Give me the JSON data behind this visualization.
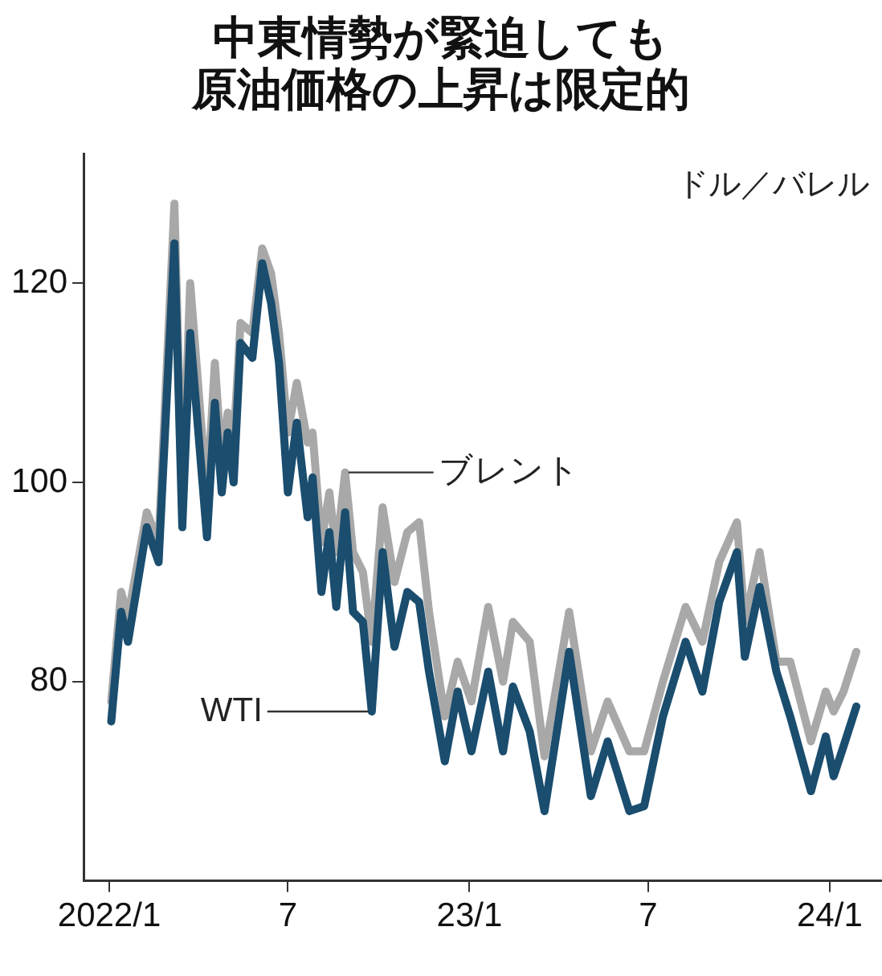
{
  "chart_data": {
    "type": "line",
    "title": "中東情勢が緊迫しても",
    "subtitle": "原油価格の上昇は限定的",
    "ylabel": "ドル／バレル",
    "x": [
      "2022-01-03",
      "2022-01-13",
      "2022-01-20",
      "2022-02-08",
      "2022-02-20",
      "2022-03-08",
      "2022-03-16",
      "2022-03-24",
      "2022-04-10",
      "2022-04-18",
      "2022-04-25",
      "2022-05-01",
      "2022-05-07",
      "2022-05-14",
      "2022-05-26",
      "2022-06-05",
      "2022-06-14",
      "2022-06-22",
      "2022-07-01",
      "2022-07-10",
      "2022-07-21",
      "2022-07-26",
      "2022-08-04",
      "2022-08-12",
      "2022-08-19",
      "2022-08-28",
      "2022-09-05",
      "2022-09-15",
      "2022-09-24",
      "2022-10-05",
      "2022-10-17",
      "2022-10-30",
      "2022-11-11",
      "2022-11-21",
      "2022-12-07",
      "2022-12-20",
      "2023-01-03",
      "2023-01-20",
      "2023-02-04",
      "2023-02-14",
      "2023-03-03",
      "2023-03-18",
      "2023-04-12",
      "2023-05-04",
      "2023-05-21",
      "2023-06-12",
      "2023-06-27",
      "2023-07-16",
      "2023-08-08",
      "2023-08-25",
      "2023-09-11",
      "2023-09-29",
      "2023-10-07",
      "2023-10-22",
      "2023-11-08",
      "2023-11-22",
      "2023-12-13",
      "2023-12-28",
      "2024-01-05",
      "2024-01-15",
      "2024-01-28"
    ],
    "series": [
      {
        "name": "ブレント",
        "color": "#a8a8a8",
        "values": [
          78,
          89,
          86.5,
          97,
          94,
          128,
          98,
          120,
          98.5,
          112,
          102,
          107,
          104,
          116,
          115,
          123.5,
          121,
          115,
          105,
          110,
          104,
          105,
          94,
          99,
          93,
          101,
          93,
          91,
          84,
          97.5,
          90,
          95,
          96,
          87,
          76.5,
          82,
          78,
          87.5,
          80,
          86,
          84,
          72.5,
          87,
          73,
          78,
          73,
          73,
          80,
          87.5,
          84,
          92,
          96,
          86,
          93,
          82,
          82,
          74,
          79,
          77,
          79,
          83
        ]
      },
      {
        "name": "WTI",
        "color": "#1a4d6e",
        "values": [
          76,
          87,
          84,
          95.5,
          92,
          124,
          95.5,
          115,
          94.5,
          108,
          99,
          105,
          100,
          114,
          112.5,
          122,
          118,
          112,
          99,
          106,
          96.5,
          100.5,
          89,
          95,
          87.5,
          97,
          87,
          86,
          77,
          93,
          83.5,
          89,
          88,
          81,
          72,
          79,
          73,
          81,
          73,
          79.5,
          75,
          67,
          83,
          68.5,
          74,
          67,
          67.5,
          76.5,
          84,
          79,
          88,
          93,
          82.5,
          89.5,
          81,
          76.5,
          69,
          74.5,
          70.5,
          73.5,
          77.5
        ]
      }
    ],
    "xlim": [
      "2021-12-06",
      "2024-02-23"
    ],
    "xticks": [
      {
        "value": "2022-01-01",
        "label": "2022/1"
      },
      {
        "value": "2022-07-01",
        "label": "7"
      },
      {
        "value": "2023-01-01",
        "label": "23/1"
      },
      {
        "value": "2023-07-01",
        "label": "7"
      },
      {
        "value": "2024-01-01",
        "label": "24/1"
      }
    ],
    "ylim": [
      60,
      133
    ],
    "yticks": [
      80,
      100,
      120
    ],
    "grid": false,
    "legend": false,
    "marker": "none",
    "line_style": "solid"
  }
}
